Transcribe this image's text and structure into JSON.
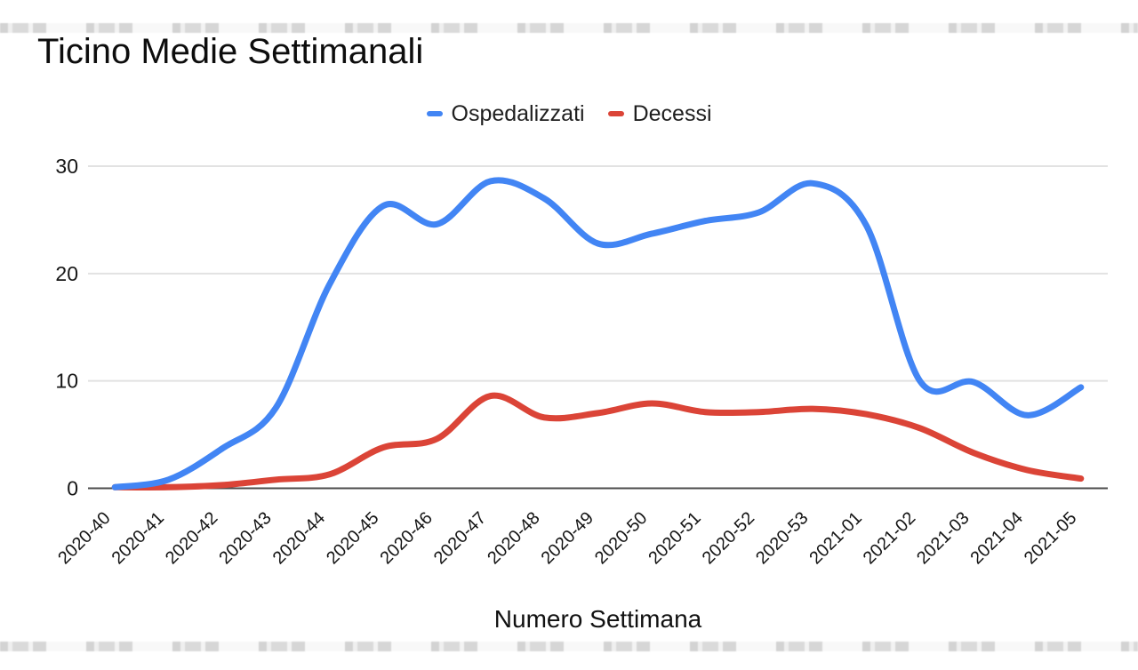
{
  "header": {
    "title": "Ticino Medie Settimanali"
  },
  "legend": {
    "items": [
      {
        "label": "Ospedalizzati",
        "color": "#4285f4"
      },
      {
        "label": "Decessi",
        "color": "#db4437"
      }
    ]
  },
  "chart_data": {
    "type": "line",
    "title": "Ticino Medie Settimanali",
    "xlabel": "Numero Settimana",
    "ylabel": "",
    "smoothed": true,
    "grid": true,
    "legend_position": "top-center",
    "ylim": [
      0,
      30
    ],
    "y_ticks": [
      0,
      10,
      20,
      30
    ],
    "categories": [
      "2020-40",
      "2020-41",
      "2020-42",
      "2020-43",
      "2020-44",
      "2020-45",
      "2020-46",
      "2020-47",
      "2020-48",
      "2020-49",
      "2020-50",
      "2020-51",
      "2020-52",
      "2020-53",
      "2021-01",
      "2021-02",
      "2021-03",
      "2021-04",
      "2021-05"
    ],
    "series": [
      {
        "name": "Ospedalizzati",
        "color": "#4285f4",
        "values": [
          0.1,
          0.8,
          3.7,
          7.5,
          19.0,
          26.3,
          24.6,
          28.6,
          27.0,
          22.8,
          23.7,
          24.9,
          25.7,
          28.4,
          24.5,
          10.0,
          9.9,
          6.8,
          9.4
        ]
      },
      {
        "name": "Decessi",
        "color": "#db4437",
        "values": [
          0.1,
          0.1,
          0.3,
          0.8,
          1.3,
          3.8,
          4.6,
          8.6,
          6.6,
          7.0,
          7.9,
          7.1,
          7.1,
          7.4,
          6.9,
          5.6,
          3.3,
          1.7,
          0.9
        ]
      }
    ]
  }
}
